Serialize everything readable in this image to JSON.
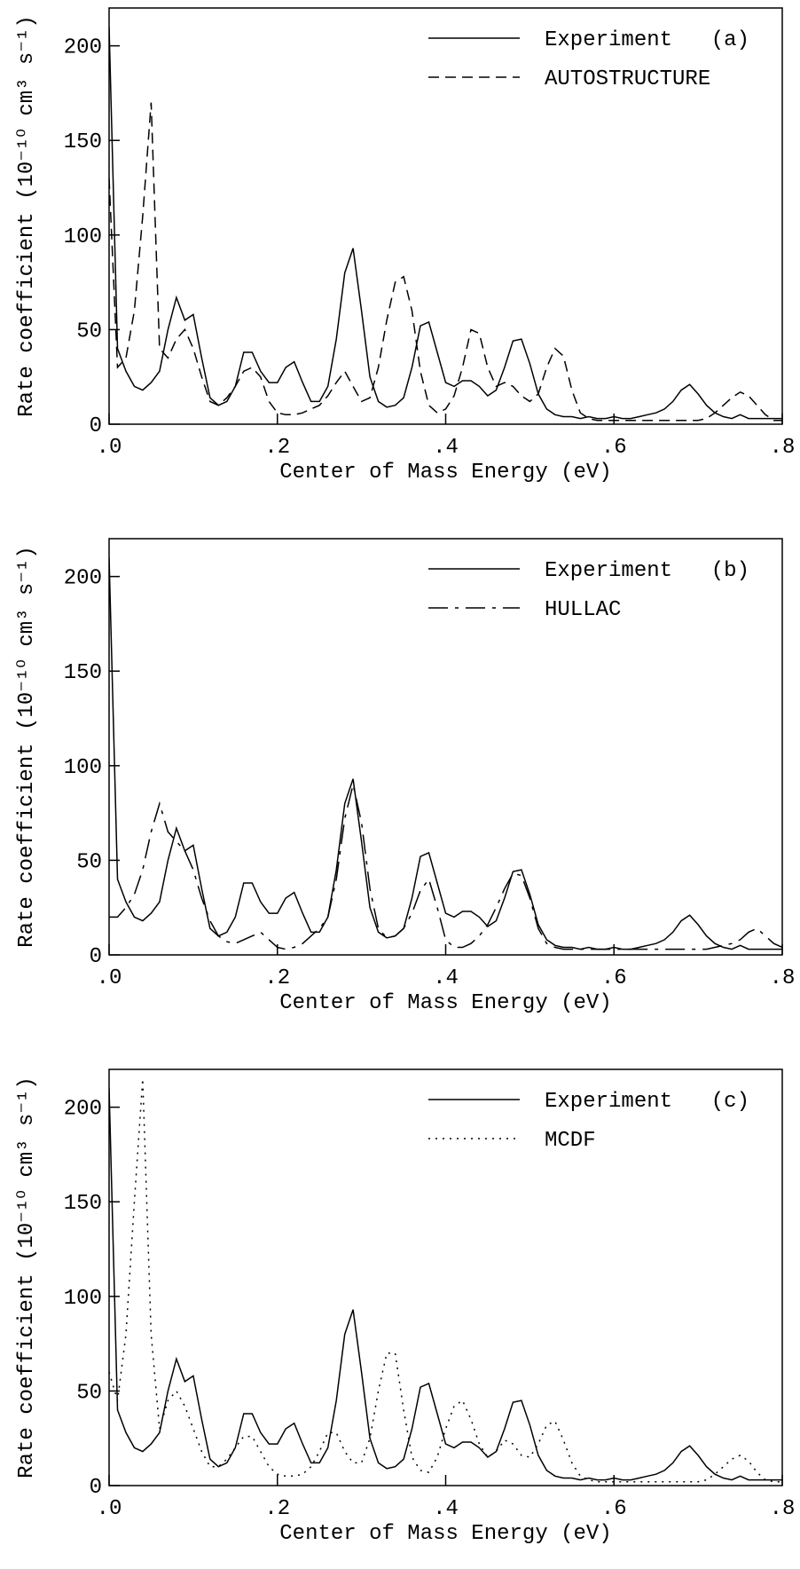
{
  "chart_data": [
    {
      "type": "line",
      "xlabel": "Center of Mass Energy (eV)",
      "ylabel": "Rate coefficient (10⁻¹⁰ cm³ s⁻¹)",
      "panel_label": "(a)",
      "legend": "upper right",
      "xlim": [
        0,
        0.8
      ],
      "ylim": [
        0,
        220
      ],
      "xticks": [
        {
          "value": 0,
          "label": ".0"
        },
        {
          "value": 0.2,
          "label": ".2"
        },
        {
          "value": 0.4,
          "label": ".4"
        },
        {
          "value": 0.6,
          "label": ".6"
        },
        {
          "value": 0.8,
          "label": ".8"
        }
      ],
      "yticks": [
        0,
        50,
        100,
        150,
        200
      ],
      "x": [
        0,
        0.01,
        0.02,
        0.03,
        0.04,
        0.05,
        0.06,
        0.07,
        0.08,
        0.09,
        0.1,
        0.11,
        0.12,
        0.13,
        0.14,
        0.15,
        0.16,
        0.17,
        0.18,
        0.19,
        0.2,
        0.21,
        0.22,
        0.23,
        0.24,
        0.25,
        0.26,
        0.27,
        0.28,
        0.29,
        0.3,
        0.31,
        0.32,
        0.33,
        0.34,
        0.35,
        0.36,
        0.37,
        0.38,
        0.39,
        0.4,
        0.41,
        0.42,
        0.43,
        0.44,
        0.45,
        0.46,
        0.47,
        0.48,
        0.49,
        0.5,
        0.51,
        0.52,
        0.53,
        0.54,
        0.55,
        0.56,
        0.57,
        0.58,
        0.59,
        0.6,
        0.61,
        0.62,
        0.63,
        0.64,
        0.65,
        0.66,
        0.67,
        0.68,
        0.69,
        0.7,
        0.71,
        0.72,
        0.73,
        0.74,
        0.75,
        0.76,
        0.77,
        0.78,
        0.79,
        0.8
      ],
      "series": [
        {
          "name": "Experiment",
          "color": "#000000",
          "style": "solid",
          "values": [
            210,
            40,
            28,
            20,
            18,
            22,
            28,
            50,
            67,
            55,
            58,
            35,
            14,
            10,
            12,
            20,
            38,
            38,
            28,
            22,
            22,
            30,
            33,
            22,
            12,
            12,
            20,
            45,
            80,
            93,
            60,
            25,
            12,
            9,
            10,
            14,
            30,
            52,
            54,
            38,
            22,
            20,
            23,
            23,
            20,
            15,
            18,
            30,
            44,
            45,
            32,
            16,
            8,
            5,
            4,
            4,
            3,
            4,
            3,
            3,
            4,
            3,
            3,
            4,
            5,
            6,
            8,
            12,
            18,
            21,
            16,
            10,
            6,
            4,
            3,
            5,
            3,
            3,
            3,
            3,
            3
          ]
        },
        {
          "name": "AUTOSTRUCTURE",
          "color": "#000000",
          "style": "dashed",
          "values": [
            130,
            30,
            35,
            60,
            110,
            170,
            40,
            35,
            45,
            50,
            40,
            25,
            12,
            10,
            14,
            20,
            28,
            30,
            25,
            12,
            6,
            5,
            5,
            6,
            8,
            10,
            15,
            22,
            28,
            20,
            12,
            14,
            30,
            55,
            75,
            78,
            60,
            28,
            10,
            6,
            8,
            15,
            30,
            50,
            48,
            30,
            20,
            22,
            20,
            15,
            12,
            16,
            30,
            40,
            36,
            18,
            6,
            3,
            2,
            2,
            2,
            2,
            2,
            2,
            2,
            2,
            2,
            2,
            2,
            2,
            2,
            3,
            6,
            10,
            14,
            17,
            15,
            10,
            5,
            2,
            2
          ]
        }
      ]
    },
    {
      "type": "line",
      "xlabel": "Center of Mass Energy (eV)",
      "ylabel": "Rate coefficient (10⁻¹⁰ cm³ s⁻¹)",
      "panel_label": "(b)",
      "legend": "upper right",
      "xlim": [
        0,
        0.8
      ],
      "ylim": [
        0,
        220
      ],
      "xticks": [
        {
          "value": 0,
          "label": ".0"
        },
        {
          "value": 0.2,
          "label": ".2"
        },
        {
          "value": 0.4,
          "label": ".4"
        },
        {
          "value": 0.6,
          "label": ".6"
        },
        {
          "value": 0.8,
          "label": ".8"
        }
      ],
      "yticks": [
        0,
        50,
        100,
        150,
        200
      ],
      "x": [
        0,
        0.01,
        0.02,
        0.03,
        0.04,
        0.05,
        0.06,
        0.07,
        0.08,
        0.09,
        0.1,
        0.11,
        0.12,
        0.13,
        0.14,
        0.15,
        0.16,
        0.17,
        0.18,
        0.19,
        0.2,
        0.21,
        0.22,
        0.23,
        0.24,
        0.25,
        0.26,
        0.27,
        0.28,
        0.29,
        0.3,
        0.31,
        0.32,
        0.33,
        0.34,
        0.35,
        0.36,
        0.37,
        0.38,
        0.39,
        0.4,
        0.41,
        0.42,
        0.43,
        0.44,
        0.45,
        0.46,
        0.47,
        0.48,
        0.49,
        0.5,
        0.51,
        0.52,
        0.53,
        0.54,
        0.55,
        0.56,
        0.57,
        0.58,
        0.59,
        0.6,
        0.61,
        0.62,
        0.63,
        0.64,
        0.65,
        0.66,
        0.67,
        0.68,
        0.69,
        0.7,
        0.71,
        0.72,
        0.73,
        0.74,
        0.75,
        0.76,
        0.77,
        0.78,
        0.79,
        0.8
      ],
      "series": [
        {
          "name": "Experiment",
          "color": "#000000",
          "style": "solid",
          "values": [
            210,
            40,
            28,
            20,
            18,
            22,
            28,
            50,
            67,
            55,
            58,
            35,
            14,
            10,
            12,
            20,
            38,
            38,
            28,
            22,
            22,
            30,
            33,
            22,
            12,
            12,
            20,
            45,
            80,
            93,
            60,
            25,
            12,
            9,
            10,
            14,
            30,
            52,
            54,
            38,
            22,
            20,
            23,
            23,
            20,
            15,
            18,
            30,
            44,
            45,
            32,
            16,
            8,
            5,
            4,
            4,
            3,
            4,
            3,
            3,
            4,
            3,
            3,
            4,
            5,
            6,
            8,
            12,
            18,
            21,
            16,
            10,
            6,
            4,
            3,
            5,
            3,
            3,
            3,
            3,
            3
          ]
        },
        {
          "name": "HULLAC",
          "color": "#000000",
          "style": "dashdot",
          "values": [
            20,
            20,
            25,
            32,
            45,
            65,
            80,
            65,
            60,
            55,
            45,
            30,
            18,
            10,
            7,
            6,
            8,
            10,
            12,
            8,
            4,
            3,
            4,
            6,
            10,
            14,
            20,
            40,
            72,
            90,
            70,
            35,
            14,
            9,
            10,
            14,
            22,
            34,
            40,
            25,
            8,
            4,
            4,
            6,
            10,
            16,
            25,
            35,
            43,
            42,
            30,
            14,
            6,
            4,
            3,
            3,
            3,
            3,
            3,
            3,
            3,
            3,
            3,
            3,
            3,
            3,
            3,
            3,
            3,
            3,
            3,
            3,
            4,
            5,
            6,
            8,
            12,
            14,
            10,
            6,
            4
          ]
        }
      ]
    },
    {
      "type": "line",
      "xlabel": "Center of Mass Energy (eV)",
      "ylabel": "Rate coefficient (10⁻¹⁰ cm³ s⁻¹)",
      "panel_label": "(c)",
      "legend": "upper right",
      "xlim": [
        0,
        0.8
      ],
      "ylim": [
        0,
        220
      ],
      "xticks": [
        {
          "value": 0,
          "label": ".0"
        },
        {
          "value": 0.2,
          "label": ".2"
        },
        {
          "value": 0.4,
          "label": ".4"
        },
        {
          "value": 0.6,
          "label": ".6"
        },
        {
          "value": 0.8,
          "label": ".8"
        }
      ],
      "yticks": [
        0,
        50,
        100,
        150,
        200
      ],
      "x": [
        0,
        0.01,
        0.02,
        0.03,
        0.04,
        0.05,
        0.06,
        0.07,
        0.08,
        0.09,
        0.1,
        0.11,
        0.12,
        0.13,
        0.14,
        0.15,
        0.16,
        0.17,
        0.18,
        0.19,
        0.2,
        0.21,
        0.22,
        0.23,
        0.24,
        0.25,
        0.26,
        0.27,
        0.28,
        0.29,
        0.3,
        0.31,
        0.32,
        0.33,
        0.34,
        0.35,
        0.36,
        0.37,
        0.38,
        0.39,
        0.4,
        0.41,
        0.42,
        0.43,
        0.44,
        0.45,
        0.46,
        0.47,
        0.48,
        0.49,
        0.5,
        0.51,
        0.52,
        0.53,
        0.54,
        0.55,
        0.56,
        0.57,
        0.58,
        0.59,
        0.6,
        0.61,
        0.62,
        0.63,
        0.64,
        0.65,
        0.66,
        0.67,
        0.68,
        0.69,
        0.7,
        0.71,
        0.72,
        0.73,
        0.74,
        0.75,
        0.76,
        0.77,
        0.78,
        0.79,
        0.8
      ],
      "series": [
        {
          "name": "Experiment",
          "color": "#000000",
          "style": "solid",
          "values": [
            210,
            40,
            28,
            20,
            18,
            22,
            28,
            50,
            67,
            55,
            58,
            35,
            14,
            10,
            12,
            20,
            38,
            38,
            28,
            22,
            22,
            30,
            33,
            22,
            12,
            12,
            20,
            45,
            80,
            93,
            60,
            25,
            12,
            9,
            10,
            14,
            30,
            52,
            54,
            38,
            22,
            20,
            23,
            23,
            20,
            15,
            18,
            30,
            44,
            45,
            32,
            16,
            8,
            5,
            4,
            4,
            3,
            4,
            3,
            3,
            4,
            3,
            3,
            4,
            5,
            6,
            8,
            12,
            18,
            21,
            16,
            10,
            6,
            4,
            3,
            5,
            3,
            3,
            3,
            3,
            3
          ]
        },
        {
          "name": "MCDF",
          "color": "#000000",
          "style": "dotted",
          "values": [
            60,
            45,
            80,
            150,
            215,
            80,
            30,
            45,
            50,
            42,
            30,
            18,
            10,
            10,
            14,
            20,
            26,
            26,
            18,
            10,
            6,
            5,
            5,
            6,
            10,
            18,
            28,
            28,
            18,
            12,
            12,
            25,
            50,
            70,
            70,
            40,
            15,
            8,
            7,
            15,
            30,
            42,
            45,
            35,
            22,
            15,
            18,
            24,
            22,
            16,
            15,
            22,
            32,
            34,
            24,
            12,
            5,
            3,
            2,
            2,
            2,
            2,
            2,
            2,
            2,
            2,
            2,
            2,
            2,
            2,
            2,
            3,
            6,
            10,
            14,
            16,
            13,
            7,
            3,
            2,
            2
          ]
        }
      ]
    }
  ]
}
